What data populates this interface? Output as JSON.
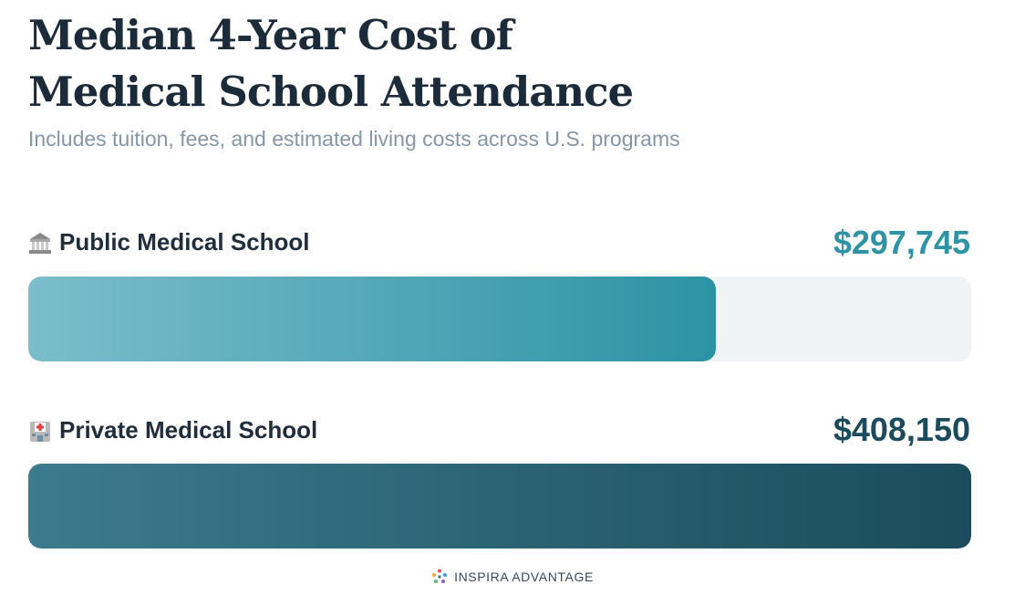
{
  "title_line1": "Median 4-Year Cost of",
  "title_line2": "Medical School Attendance",
  "subtitle": "Includes tuition, fees, and estimated living costs across U.S. programs",
  "brand": "INSPIRA ADVANTAGE",
  "colors": {
    "public_value": "#2e93a4",
    "private_value": "#1b4b5c",
    "track": "#eff3f6"
  },
  "chart_data": {
    "type": "bar",
    "orientation": "horizontal",
    "categories": [
      "Public Medical School",
      "Private Medical School"
    ],
    "values": [
      297745,
      408150
    ],
    "value_labels": [
      "$297,745",
      "$408,150"
    ],
    "icons": [
      "classical-building-icon",
      "hospital-icon"
    ],
    "xlim": [
      0,
      408150
    ],
    "grid": false
  }
}
